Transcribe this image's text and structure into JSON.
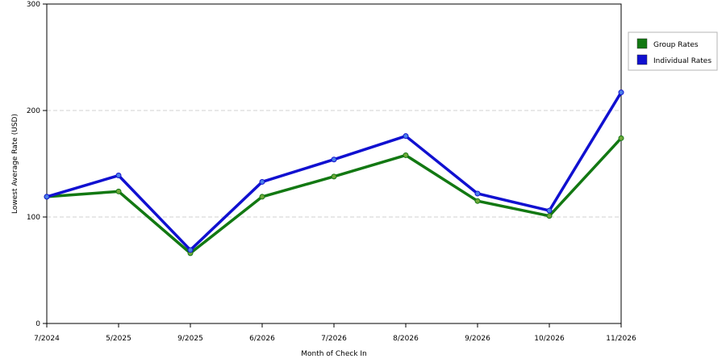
{
  "chart_data": {
    "type": "line",
    "xlabel": "Month of Check In",
    "ylabel": "Lowest Average Rate (USD)",
    "ylim": [
      0,
      300
    ],
    "y_ticks": [
      "0",
      "100",
      "200",
      "300"
    ],
    "categories": [
      "7/2024",
      "5/2025",
      "9/2025",
      "6/2026",
      "7/2026",
      "8/2026",
      "9/2026",
      "10/2026",
      "11/2026"
    ],
    "grid": "horizontal dashed",
    "legend_position": "right",
    "series": [
      {
        "name": "Group Rates",
        "color": "#127812",
        "marker": "#6fa83a",
        "values": [
          119,
          124,
          66,
          119,
          138,
          158,
          115,
          101,
          174
        ]
      },
      {
        "name": "Individual Rates",
        "color": "#1010d0",
        "marker": "#4a7fe8",
        "values": [
          119,
          139,
          69,
          133,
          154,
          176,
          122,
          106,
          217
        ]
      }
    ]
  }
}
